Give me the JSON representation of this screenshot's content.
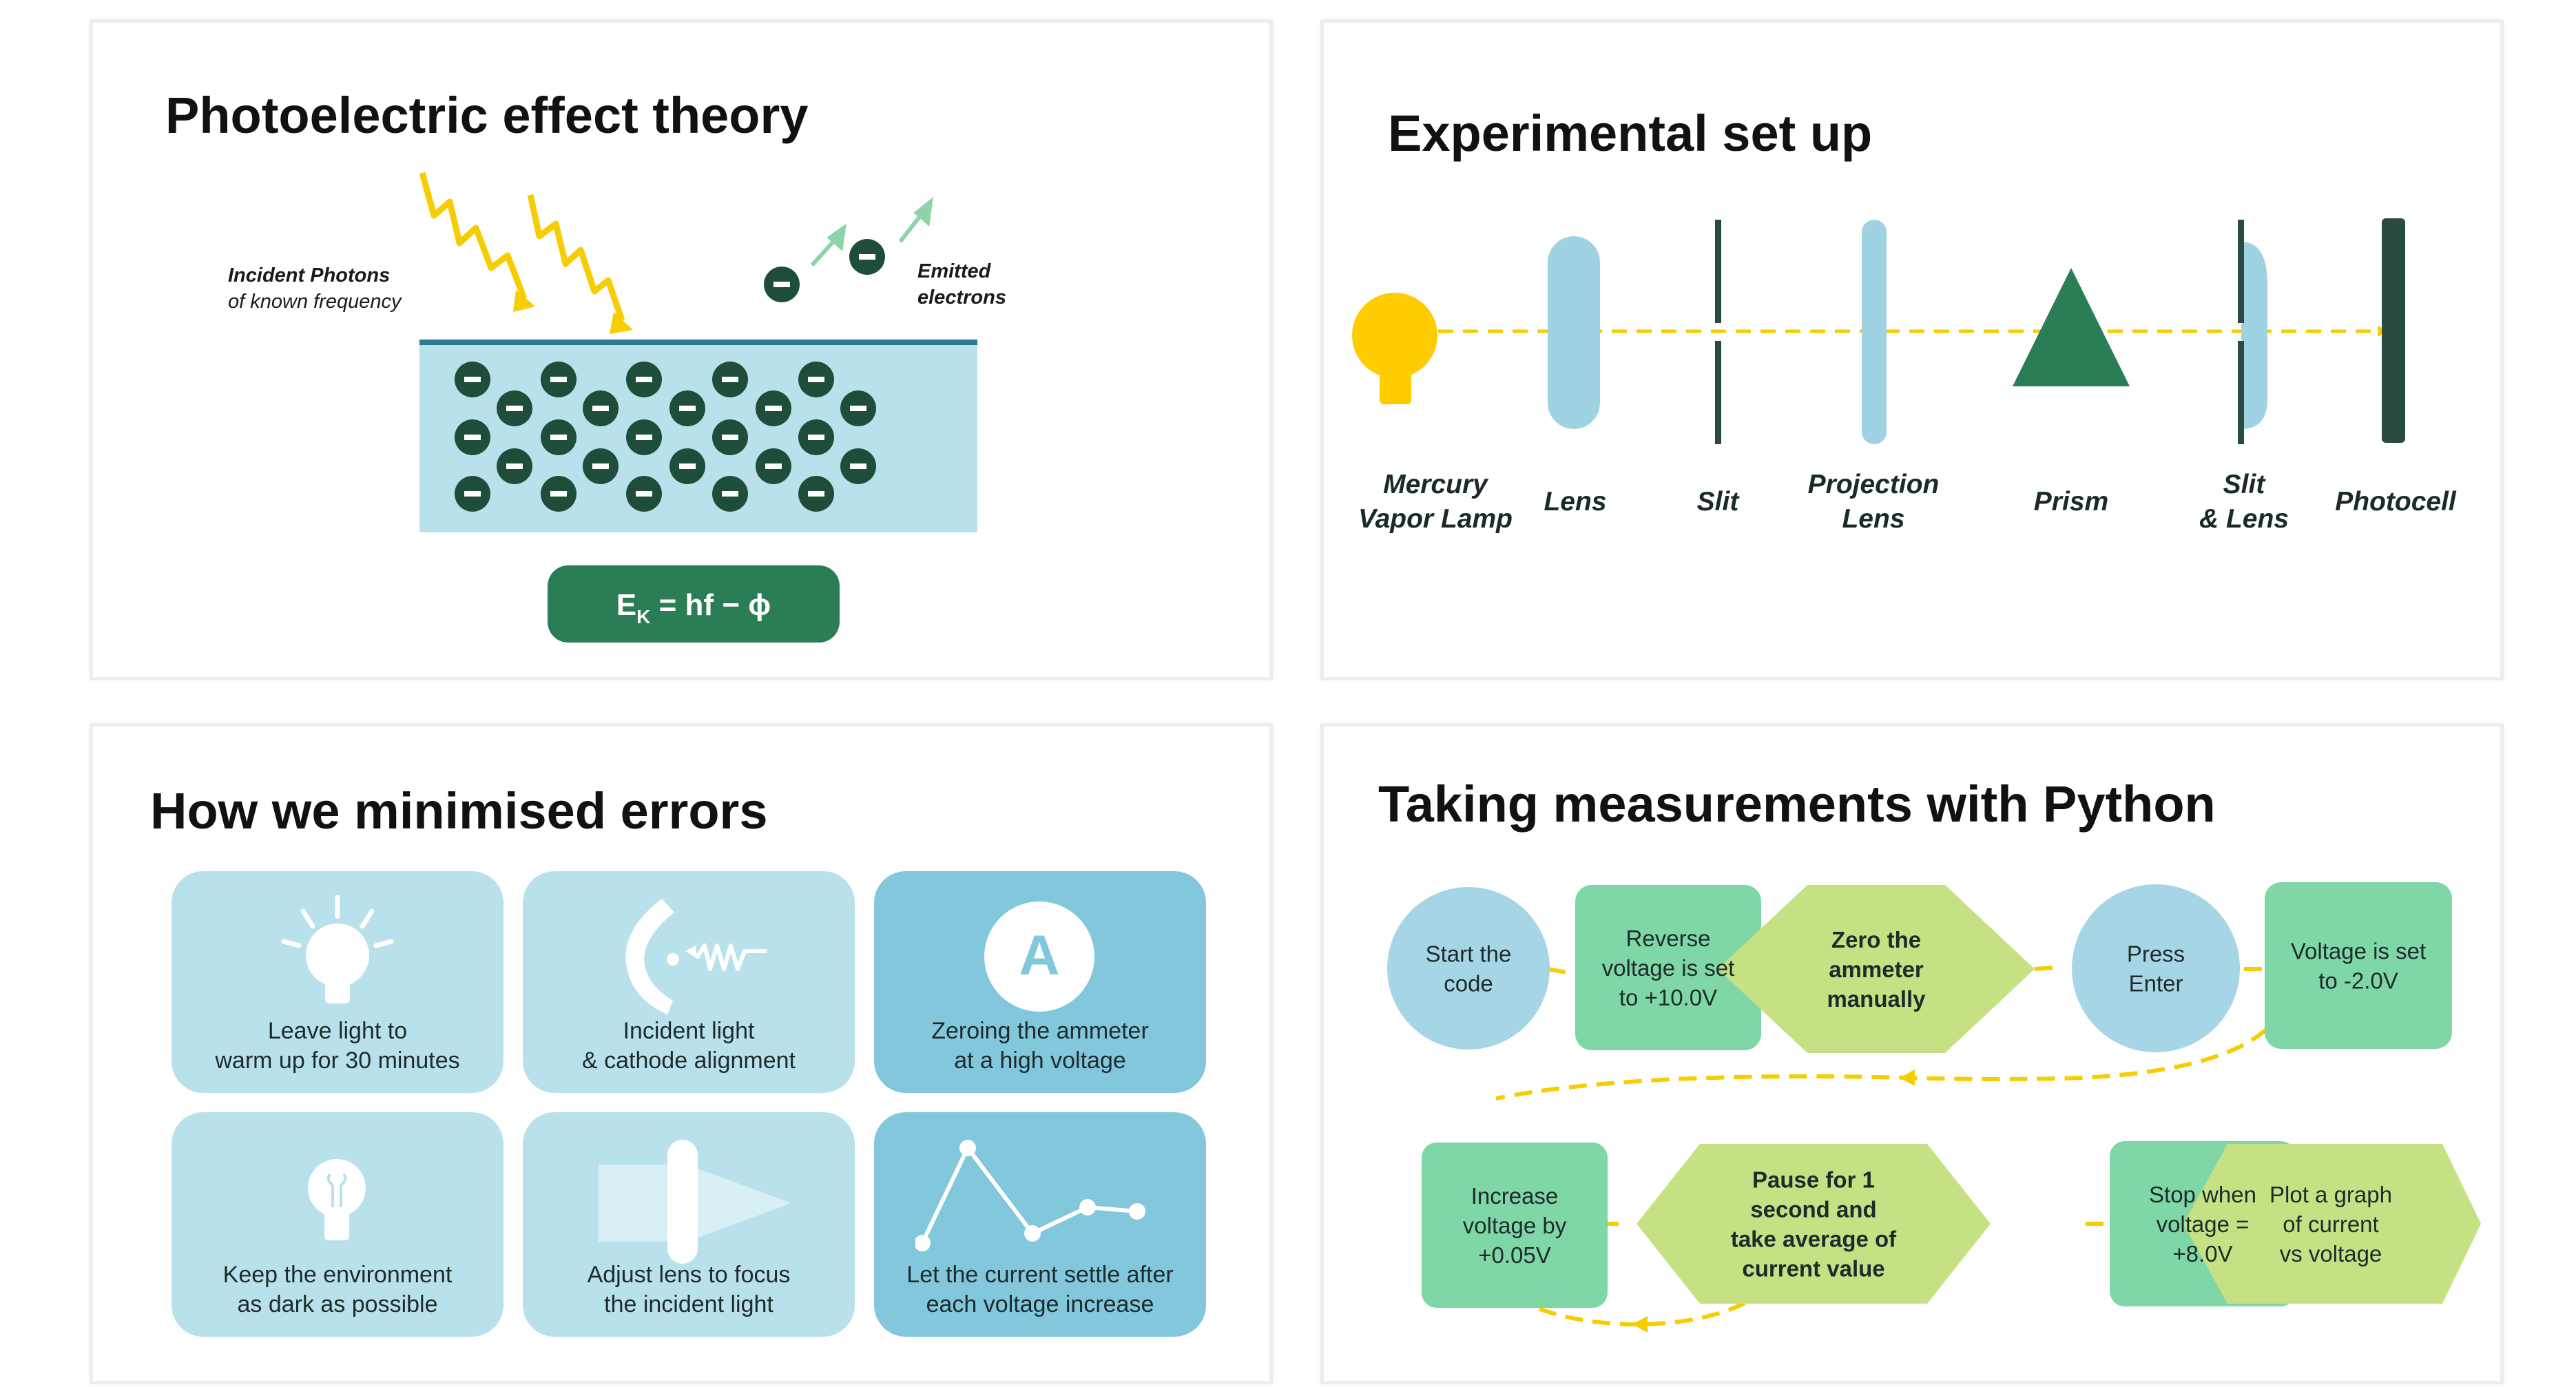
{
  "slides": {
    "photoelectric": {
      "title": "Photoelectric effect theory",
      "incident_label_1": "Incident Photons",
      "incident_label_2": "of known frequency",
      "emitted_label_1": "Emitted",
      "emitted_label_2": "electrons",
      "equation_main": "E",
      "equation_sub": "K",
      "equation_rest": " = hf − ϕ",
      "electron_sign": "−"
    },
    "setup": {
      "title": "Experimental set up",
      "components": [
        {
          "line1": "Mercury",
          "line2": "Vapor Lamp"
        },
        {
          "line1": "Lens",
          "line2": ""
        },
        {
          "line1": "Slit",
          "line2": ""
        },
        {
          "line1": "Projection",
          "line2": "Lens"
        },
        {
          "line1": "Prism",
          "line2": ""
        },
        {
          "line1": "Slit",
          "line2": "& Lens"
        },
        {
          "line1": "Photocell",
          "line2": ""
        }
      ]
    },
    "errors": {
      "title": "How we minimised errors",
      "cards": [
        {
          "line1": "Leave light to",
          "line2": "warm up for 30 minutes",
          "icon": "light-bulb-icon"
        },
        {
          "line1": "Incident light",
          "line2": "& cathode alignment",
          "icon": "cathode-alignment-icon"
        },
        {
          "line1": "Zeroing the ammeter",
          "line2": "at a high voltage",
          "icon": "ammeter-icon",
          "icon_letter": "A"
        },
        {
          "line1": "Keep the environment",
          "line2": "as dark as possible",
          "icon": "dim-bulb-icon"
        },
        {
          "line1": "Adjust lens to focus",
          "line2": "the incident light",
          "icon": "lens-focus-icon"
        },
        {
          "line1": "Let the current settle after",
          "line2": "each voltage increase",
          "icon": "line-graph-icon"
        }
      ]
    },
    "python": {
      "title": "Taking measurements with Python",
      "steps": [
        {
          "lines": [
            "Start the",
            "code"
          ],
          "shape": "circle"
        },
        {
          "lines": [
            "Reverse",
            "voltage is set",
            "to +10.0V"
          ],
          "shape": "rect"
        },
        {
          "lines": [
            "Zero the",
            "ammeter",
            "manually"
          ],
          "shape": "hexagon"
        },
        {
          "lines": [
            "Press",
            "Enter"
          ],
          "shape": "circle"
        },
        {
          "lines": [
            "Voltage is set",
            "to -2.0V"
          ],
          "shape": "rect"
        },
        {
          "lines": [
            "Increase",
            "voltage by",
            "+0.05V"
          ],
          "shape": "rect"
        },
        {
          "lines": [
            "Pause for 1",
            "second and",
            "take average of",
            "current value"
          ],
          "shape": "hexagon"
        },
        {
          "lines": [
            "Stop when",
            "voltage =",
            "+8.0V"
          ],
          "shape": "rect"
        },
        {
          "lines": [
            "Plot a graph",
            "of current",
            "vs voltage"
          ],
          "shape": "hexagon"
        }
      ]
    }
  },
  "colors": {
    "dark_green": "#2a7d55",
    "electron_green": "#1e4d3a",
    "light_blue": "#b9e1ec",
    "mid_blue": "#82c7dc",
    "flow_green": "#7fd6a6",
    "flow_yellow_green": "#c6e184",
    "photon_yellow": "#f6cd00",
    "lamp_yellow": "#ffcc00"
  }
}
